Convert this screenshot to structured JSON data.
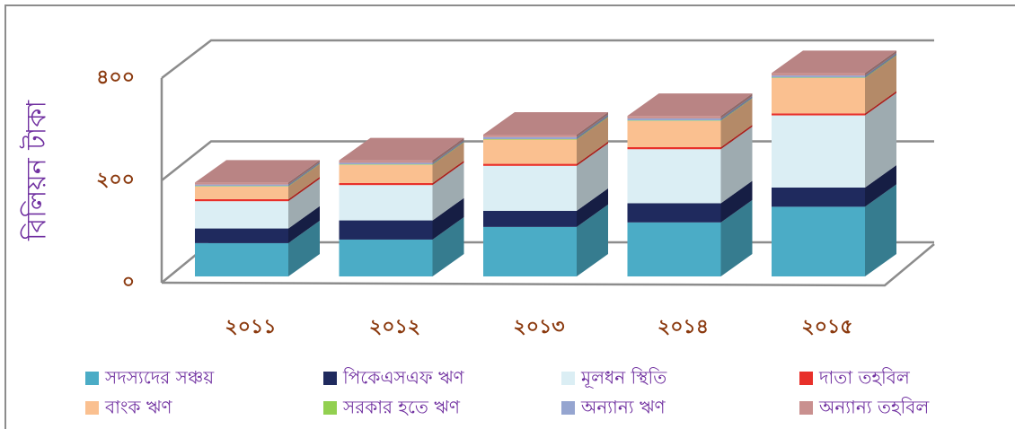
{
  "chart_data": {
    "type": "bar3d_stacked",
    "y_label": "বিলিয়ন টাকা",
    "categories": [
      "২০১১",
      "২০১২",
      "২০১৩",
      "২০১৪",
      "২০১৫"
    ],
    "series": [
      {
        "name": "সদস্যদের সঞ্চয়",
        "color": "#4bacc6",
        "values": [
          66,
          73,
          98,
          107,
          138
        ]
      },
      {
        "name": "পিকেএসএফ ঋণ",
        "color": "#1f2a5e",
        "values": [
          29,
          38,
          32,
          38,
          38
        ]
      },
      {
        "name": "মূলধন স্থিতি",
        "color": "#dbeef4",
        "values": [
          54,
          70,
          89,
          107,
          143
        ]
      },
      {
        "name": "দাতা তহবিল",
        "color": "#e8302a",
        "values": [
          4,
          4,
          4,
          4,
          4
        ]
      },
      {
        "name": "বাংক  ঋণ",
        "color": "#fac090",
        "values": [
          25,
          36,
          48,
          52,
          70
        ]
      },
      {
        "name": "সরকার হতে ঋণ",
        "color": "#92d050",
        "values": [
          1,
          1,
          1,
          1,
          1
        ]
      },
      {
        "name": "অন্যান্য ঋণ",
        "color": "#95a5d0",
        "values": [
          3,
          3,
          4,
          4,
          4
        ]
      },
      {
        "name": "অন্যান্য তহবিল",
        "color": "#c9908f",
        "values": [
          4,
          5,
          5,
          5,
          5
        ]
      }
    ],
    "ylim": [
      0,
      400
    ],
    "yticks": [
      {
        "value": 0,
        "label": "০"
      },
      {
        "value": 200,
        "label": "২০০"
      },
      {
        "value": 400,
        "label": "৪০০"
      }
    ],
    "grid": true
  }
}
